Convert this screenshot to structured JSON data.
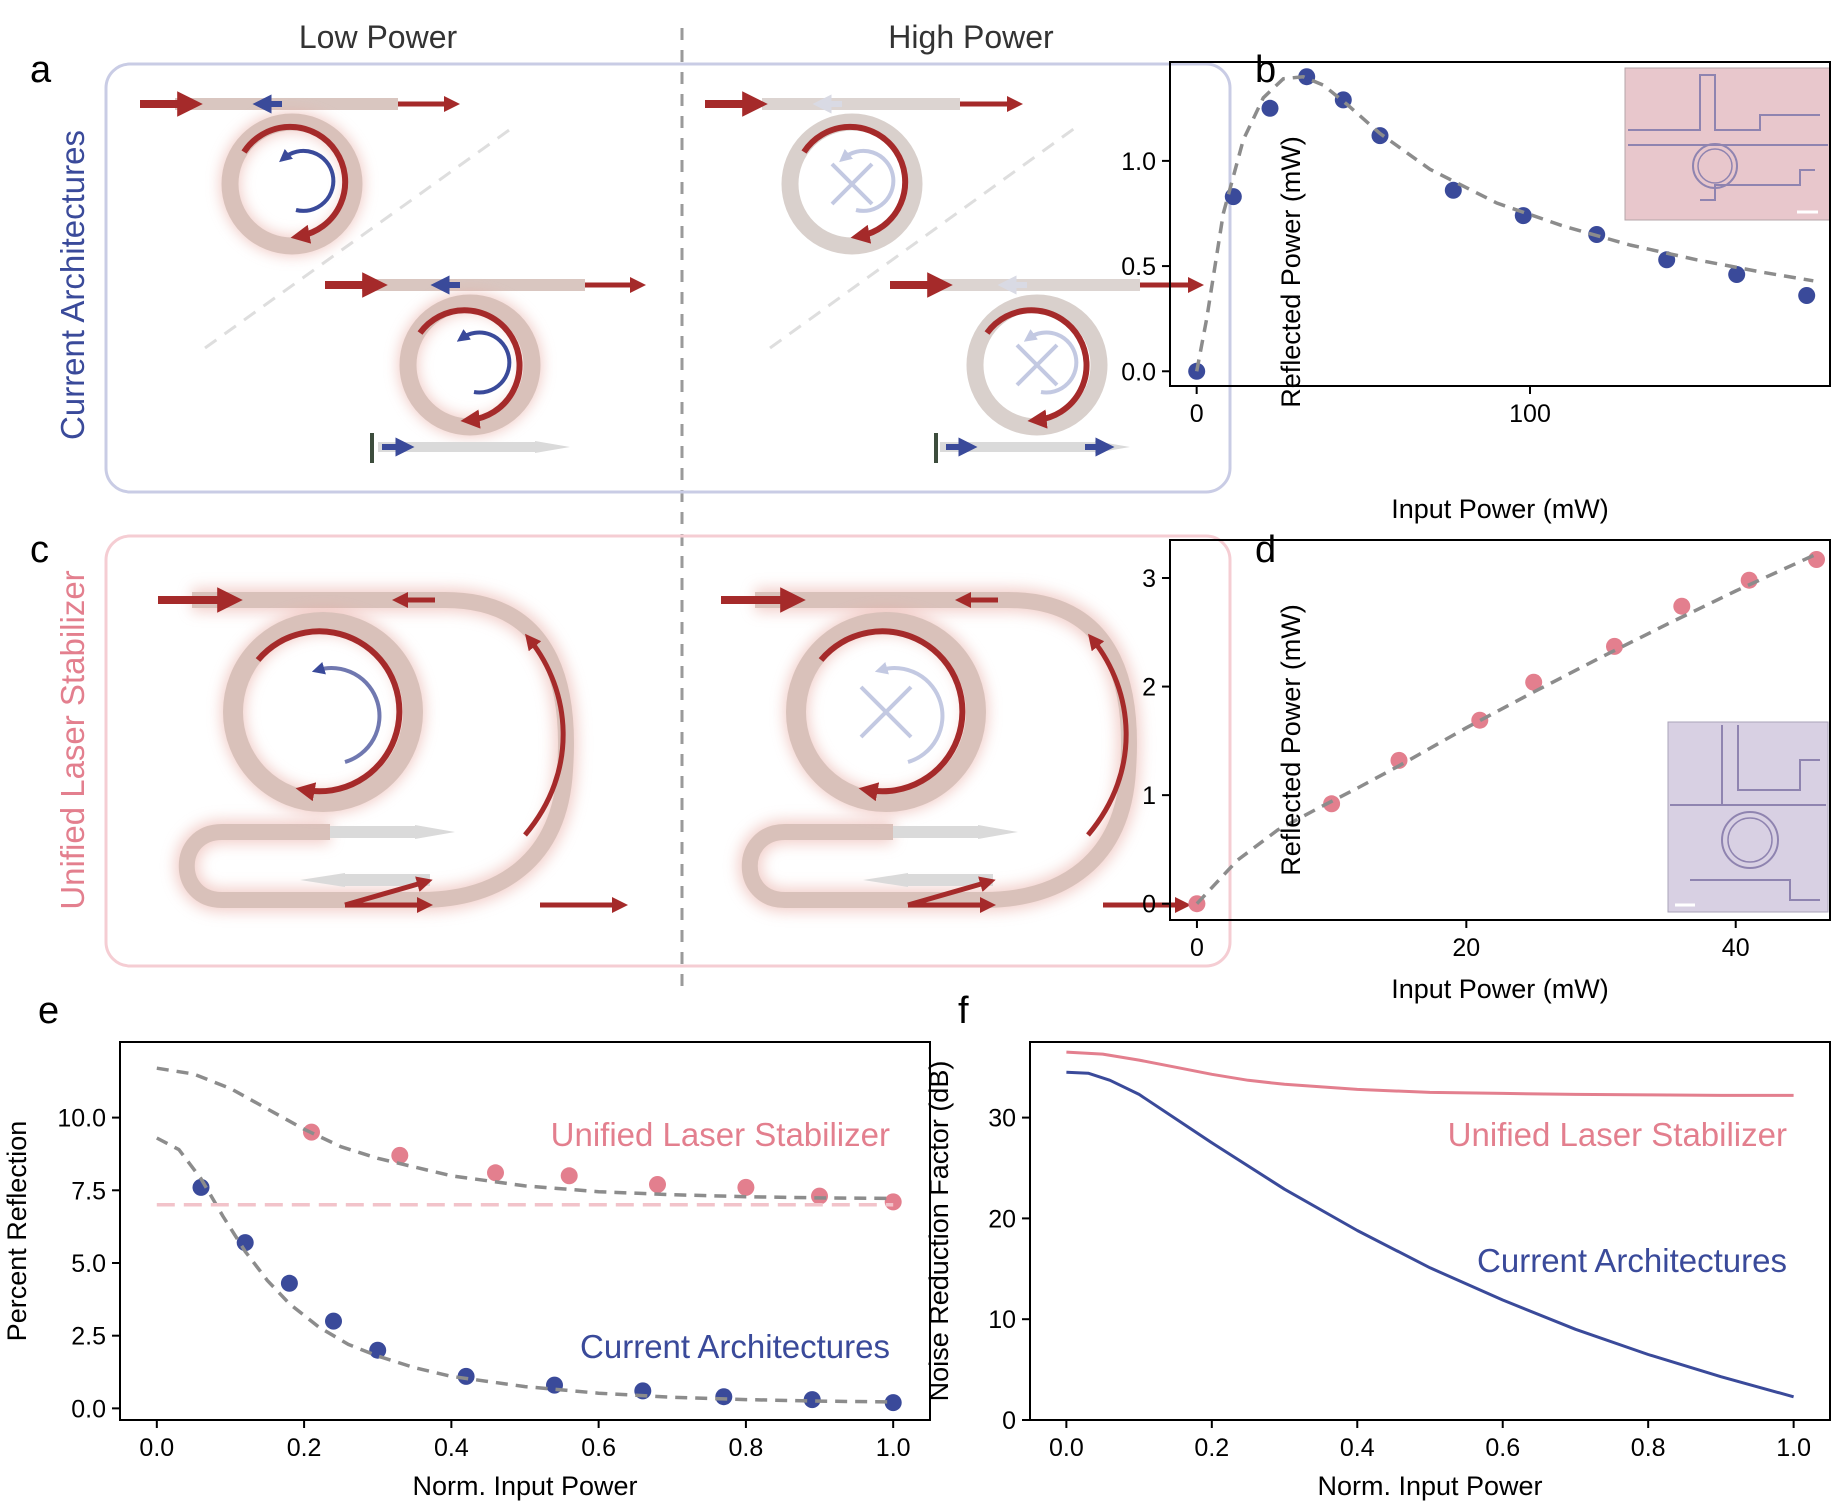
{
  "figure": {
    "columns": {
      "left": "Low Power",
      "right": "High Power"
    },
    "panel_letters": {
      "a": "a",
      "b": "b",
      "c": "c",
      "d": "d",
      "e": "e",
      "f": "f"
    },
    "row_labels": {
      "top": "Current Architectures",
      "bottom": "Unified Laser Stabilizer"
    },
    "colors": {
      "current": "#3a4a9a",
      "unified": "#e37f8e",
      "arrow_red": "#a52a2a",
      "fit": "#8c8c8c",
      "box_top": "#c9cce5",
      "box_bottom": "#f5cdd3",
      "ring": "#d8c4bd"
    }
  },
  "chart_data": [
    {
      "panel": "b",
      "type": "scatter",
      "title": "",
      "xlabel": "Input Power (mW)",
      "ylabel": "Reflected Power (mW)",
      "xlim": [
        -8,
        190
      ],
      "ylim": [
        -0.07,
        1.47
      ],
      "xticks": [
        0,
        100
      ],
      "yticks": [
        0.0,
        0.5,
        1.0
      ],
      "ytick_labels": [
        "0.0",
        "0.5",
        "1.0"
      ],
      "series": [
        {
          "name": "measured",
          "color": "#3a4a9a",
          "x": [
            0,
            11,
            22,
            33,
            44,
            55,
            77,
            98,
            120,
            141,
            162,
            183
          ],
          "y": [
            0.0,
            0.83,
            1.25,
            1.4,
            1.29,
            1.12,
            0.86,
            0.74,
            0.65,
            0.53,
            0.46,
            0.36
          ]
        },
        {
          "name": "fit",
          "style": "dashed",
          "color": "#8c8c8c",
          "x": [
            0,
            3,
            8,
            14,
            20,
            26,
            32,
            38,
            45,
            55,
            70,
            90,
            110,
            130,
            150,
            170,
            185
          ],
          "y": [
            0.0,
            0.25,
            0.75,
            1.1,
            1.3,
            1.39,
            1.4,
            1.36,
            1.27,
            1.13,
            0.96,
            0.8,
            0.69,
            0.6,
            0.53,
            0.47,
            0.43
          ]
        }
      ]
    },
    {
      "panel": "d",
      "type": "scatter",
      "title": "",
      "xlabel": "Input Power (mW)",
      "ylabel": "Reflected Power (mW)",
      "xlim": [
        -2,
        47
      ],
      "ylim": [
        -0.15,
        3.35
      ],
      "xticks": [
        0,
        20,
        40
      ],
      "yticks": [
        0,
        1,
        2,
        3
      ],
      "series": [
        {
          "name": "measured",
          "color": "#e37f8e",
          "x": [
            0,
            10,
            15,
            21,
            25,
            31,
            36,
            41,
            46
          ],
          "y": [
            0.0,
            0.92,
            1.32,
            1.69,
            2.04,
            2.37,
            2.74,
            2.98,
            3.17
          ]
        },
        {
          "name": "fit",
          "style": "dashed",
          "color": "#8c8c8c",
          "x": [
            0,
            3,
            6,
            9,
            12,
            15,
            20,
            25,
            30,
            35,
            40,
            46
          ],
          "y": [
            0.0,
            0.4,
            0.68,
            0.88,
            1.07,
            1.27,
            1.62,
            1.95,
            2.27,
            2.58,
            2.88,
            3.22
          ]
        }
      ]
    },
    {
      "panel": "e",
      "type": "scatter",
      "title": "",
      "xlabel": "Norm. Input Power",
      "ylabel": "Percent Reflection",
      "xlim": [
        -0.05,
        1.05
      ],
      "ylim": [
        -0.4,
        12.6
      ],
      "xticks": [
        0.0,
        0.2,
        0.4,
        0.6,
        0.8,
        1.0
      ],
      "xtick_labels": [
        "0.0",
        "0.2",
        "0.4",
        "0.6",
        "0.8",
        "1.0"
      ],
      "yticks": [
        0.0,
        2.5,
        5.0,
        7.5,
        10.0
      ],
      "ytick_labels": [
        "0.0",
        "2.5",
        "5.0",
        "7.5",
        "10.0"
      ],
      "series": [
        {
          "name": "Unified Laser Stabilizer",
          "color": "#e37f8e",
          "x": [
            0.21,
            0.33,
            0.46,
            0.56,
            0.68,
            0.8,
            0.9,
            1.0
          ],
          "y": [
            9.5,
            8.7,
            8.1,
            8.0,
            7.7,
            7.6,
            7.3,
            7.1
          ]
        },
        {
          "name": "Current Architectures",
          "color": "#3a4a9a",
          "x": [
            0.06,
            0.12,
            0.18,
            0.24,
            0.3,
            0.42,
            0.54,
            0.66,
            0.77,
            0.89,
            1.0
          ],
          "y": [
            7.6,
            5.7,
            4.3,
            3.0,
            2.0,
            1.1,
            0.8,
            0.6,
            0.4,
            0.3,
            0.2
          ]
        },
        {
          "name": "fit-unified",
          "style": "dashed",
          "color": "#8c8c8c",
          "x": [
            0.0,
            0.05,
            0.1,
            0.15,
            0.2,
            0.25,
            0.3,
            0.4,
            0.5,
            0.6,
            0.7,
            0.8,
            0.9,
            1.0
          ],
          "y": [
            11.7,
            11.5,
            11.0,
            10.3,
            9.6,
            9.0,
            8.6,
            8.0,
            7.65,
            7.45,
            7.35,
            7.28,
            7.24,
            7.22
          ]
        },
        {
          "name": "fit-current",
          "style": "dashed",
          "color": "#8c8c8c",
          "x": [
            0.0,
            0.03,
            0.06,
            0.09,
            0.12,
            0.15,
            0.18,
            0.22,
            0.26,
            0.3,
            0.35,
            0.4,
            0.5,
            0.6,
            0.7,
            0.8,
            0.9,
            1.0
          ],
          "y": [
            9.3,
            8.9,
            7.9,
            6.6,
            5.4,
            4.4,
            3.6,
            2.8,
            2.2,
            1.8,
            1.4,
            1.1,
            0.75,
            0.52,
            0.38,
            0.3,
            0.25,
            0.22
          ]
        },
        {
          "name": "baseline",
          "style": "dashed",
          "color": "#f2c3ca",
          "x": [
            0.0,
            1.0
          ],
          "y": [
            7.0,
            7.0
          ]
        }
      ]
    },
    {
      "panel": "f",
      "type": "line",
      "title": "",
      "xlabel": "Norm. Input Power",
      "ylabel": "Noise Reduction Factor (dB)",
      "xlim": [
        -0.05,
        1.05
      ],
      "ylim": [
        0,
        37.5
      ],
      "xticks": [
        0.0,
        0.2,
        0.4,
        0.6,
        0.8,
        1.0
      ],
      "xtick_labels": [
        "0.0",
        "0.2",
        "0.4",
        "0.6",
        "0.8",
        "1.0"
      ],
      "yticks": [
        0,
        10,
        20,
        30
      ],
      "series": [
        {
          "name": "Unified Laser Stabilizer",
          "color": "#e37f8e",
          "x": [
            0.0,
            0.05,
            0.1,
            0.15,
            0.2,
            0.25,
            0.3,
            0.4,
            0.5,
            0.6,
            0.7,
            0.8,
            0.9,
            1.0
          ],
          "y": [
            36.5,
            36.3,
            35.7,
            35.0,
            34.3,
            33.7,
            33.3,
            32.8,
            32.5,
            32.4,
            32.3,
            32.25,
            32.2,
            32.2
          ]
        },
        {
          "name": "Current Architectures",
          "color": "#3a4a9a",
          "x": [
            0.0,
            0.03,
            0.06,
            0.1,
            0.15,
            0.2,
            0.3,
            0.4,
            0.5,
            0.6,
            0.7,
            0.8,
            0.9,
            1.0
          ],
          "y": [
            34.5,
            34.4,
            33.7,
            32.3,
            29.9,
            27.5,
            22.9,
            18.8,
            15.1,
            11.9,
            9.0,
            6.5,
            4.3,
            2.3
          ]
        }
      ]
    }
  ]
}
